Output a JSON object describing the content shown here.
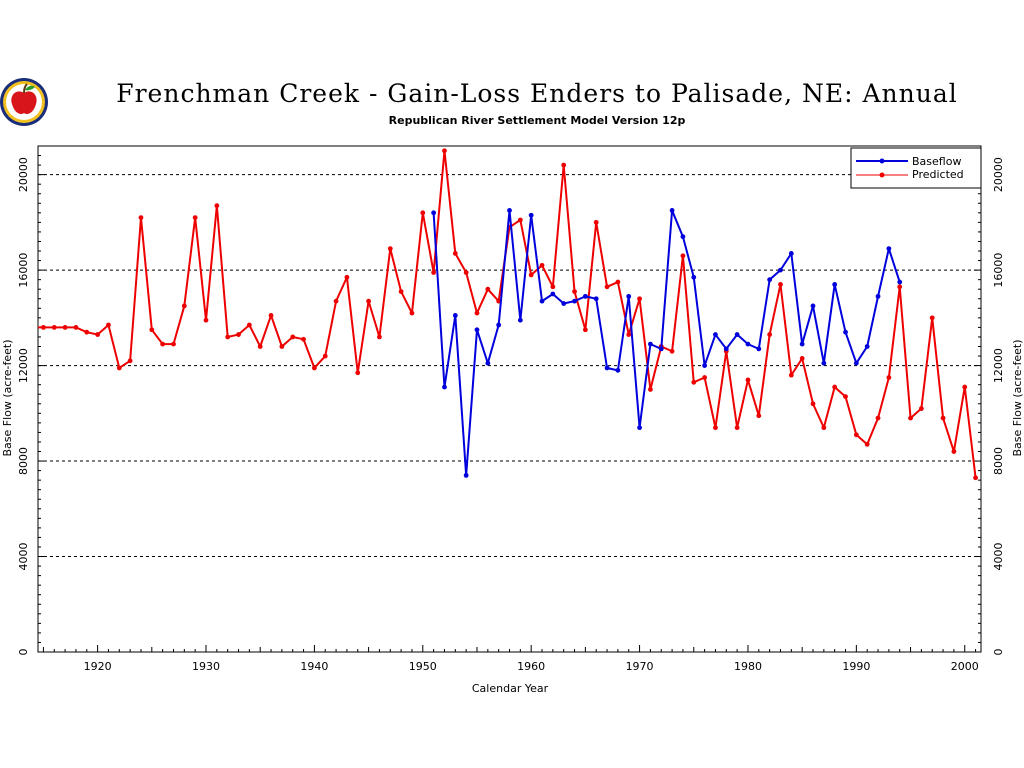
{
  "chart_data": {
    "type": "line",
    "title": "Frenchman Creek - Gain-Loss Enders to Palisade, NE: Annual",
    "subtitle": "Republican River Settlement Model Version 12p",
    "xlabel": "Calendar Year",
    "ylabel_left": "Base Flow (acre-feet)",
    "ylabel_right": "Base Flow (acre-feet)",
    "xlim": [
      1914.5,
      2001.5
    ],
    "ylim": [
      0,
      21200
    ],
    "x_ticks": [
      1920,
      1930,
      1940,
      1950,
      1960,
      1970,
      1980,
      1990,
      2000
    ],
    "y_ticks": [
      0,
      4000,
      8000,
      12000,
      16000,
      20000
    ],
    "grid": "horizontal-dashed",
    "legend_position": "top-right",
    "colors": {
      "baseflow": "#0000dd",
      "predicted": "#ee0000"
    },
    "series": [
      {
        "name": "Baseflow",
        "color": "#0000dd",
        "x": [
          1951,
          1952,
          1953,
          1954,
          1955,
          1956,
          1957,
          1958,
          1959,
          1960,
          1961,
          1962,
          1963,
          1964,
          1965,
          1966,
          1967,
          1968,
          1969,
          1970,
          1971,
          1972,
          1973,
          1974,
          1975,
          1976,
          1977,
          1978,
          1979,
          1980,
          1981,
          1982,
          1983,
          1984,
          1985,
          1986,
          1987,
          1988,
          1989,
          1990,
          1991,
          1992,
          1993,
          1994
        ],
        "y": [
          18400,
          11100,
          14100,
          7400,
          13500,
          12100,
          13700,
          18500,
          13900,
          18300,
          14700,
          15000,
          14600,
          14700,
          14900,
          14800,
          11900,
          11800,
          14900,
          9400,
          12900,
          12700,
          18500,
          17400,
          15700,
          12000,
          13300,
          12700,
          13300,
          12900,
          12700,
          15600,
          16000,
          16700,
          12900,
          14500,
          12100,
          15400,
          13400,
          12100,
          12800,
          14900,
          16900,
          15500
        ]
      },
      {
        "name": "Predicted",
        "color": "#ee0000",
        "x": [
          1914,
          1915,
          1916,
          1917,
          1918,
          1919,
          1920,
          1921,
          1922,
          1923,
          1924,
          1925,
          1926,
          1927,
          1928,
          1929,
          1930,
          1931,
          1932,
          1933,
          1934,
          1935,
          1936,
          1937,
          1938,
          1939,
          1940,
          1941,
          1942,
          1943,
          1944,
          1945,
          1946,
          1947,
          1948,
          1949,
          1950,
          1951,
          1952,
          1953,
          1954,
          1955,
          1956,
          1957,
          1958,
          1959,
          1960,
          1961,
          1962,
          1963,
          1964,
          1965,
          1966,
          1967,
          1968,
          1969,
          1970,
          1971,
          1972,
          1973,
          1974,
          1975,
          1976,
          1977,
          1978,
          1979,
          1980,
          1981,
          1982,
          1983,
          1984,
          1985,
          1986,
          1987,
          1988,
          1989,
          1990,
          1991,
          1992,
          1993,
          1994,
          1995,
          1996,
          1997,
          1998,
          1999,
          2000,
          2001
        ],
        "y": [
          13600,
          13600,
          13600,
          13600,
          13600,
          13400,
          13300,
          13700,
          11900,
          12200,
          18200,
          13500,
          12900,
          12900,
          14500,
          18200,
          13900,
          18700,
          13200,
          13300,
          13700,
          12800,
          14100,
          12800,
          13200,
          13100,
          11900,
          12400,
          14700,
          15700,
          11700,
          14700,
          13200,
          16900,
          15100,
          14200,
          18400,
          15900,
          21000,
          16700,
          15900,
          14200,
          15200,
          14700,
          17800,
          18100,
          15800,
          16200,
          15300,
          20400,
          15100,
          13500,
          18000,
          15300,
          15500,
          13300,
          14800,
          11000,
          12800,
          12600,
          16600,
          11300,
          11500,
          9400,
          12600,
          9400,
          11400,
          9900,
          13300,
          15400,
          11600,
          12300,
          10400,
          9400,
          11100,
          10700,
          9100,
          8700,
          9800,
          11500,
          15300,
          9800,
          10200,
          14000,
          9800,
          8400,
          11100,
          7300
        ]
      }
    ],
    "legend": [
      {
        "label": "Baseflow",
        "color": "#0000dd"
      },
      {
        "label": "Predicted",
        "color": "#ee0000"
      }
    ]
  }
}
